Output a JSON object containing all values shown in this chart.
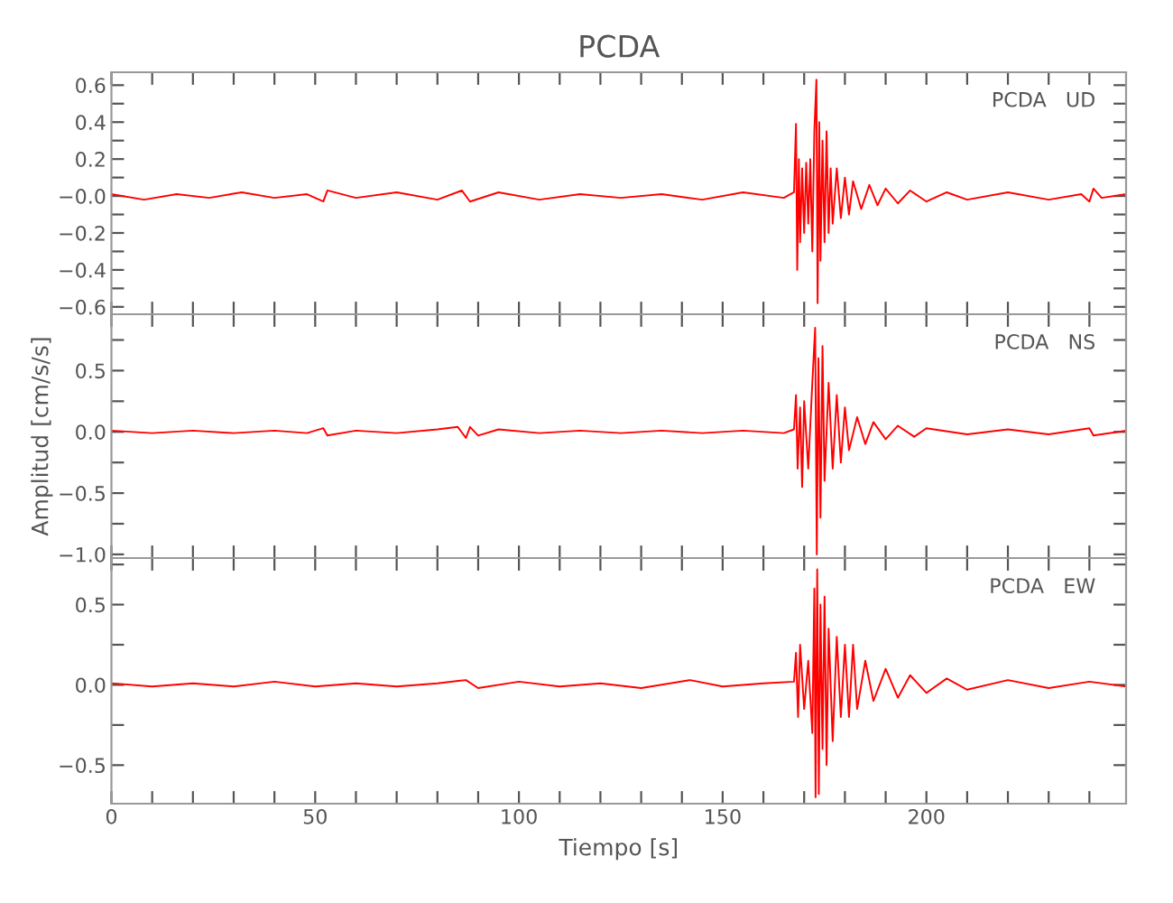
{
  "chart_data": [
    {
      "type": "line",
      "title": "PCDA",
      "annotations": [
        "PCDA   UD"
      ],
      "xlim": [
        0,
        249
      ],
      "ylim": [
        -0.64,
        0.67
      ],
      "tick_labels": "y",
      "xticks": [
        {
          "value": 0,
          "label": null
        },
        {
          "value": 10,
          "label": null
        },
        {
          "value": 20,
          "label": null
        },
        {
          "value": 30,
          "label": null
        },
        {
          "value": 40,
          "label": null
        },
        {
          "value": 50,
          "label": null
        },
        {
          "value": 60,
          "label": null
        },
        {
          "value": 70,
          "label": null
        },
        {
          "value": 80,
          "label": null
        },
        {
          "value": 90,
          "label": null
        },
        {
          "value": 100,
          "label": null
        },
        {
          "value": 110,
          "label": null
        },
        {
          "value": 120,
          "label": null
        },
        {
          "value": 130,
          "label": null
        },
        {
          "value": 140,
          "label": null
        },
        {
          "value": 150,
          "label": null
        },
        {
          "value": 160,
          "label": null
        },
        {
          "value": 170,
          "label": null
        },
        {
          "value": 180,
          "label": null
        },
        {
          "value": 190,
          "label": null
        },
        {
          "value": 200,
          "label": null
        },
        {
          "value": 210,
          "label": null
        },
        {
          "value": 220,
          "label": null
        },
        {
          "value": 230,
          "label": null
        },
        {
          "value": 240,
          "label": null
        }
      ],
      "yticks": [
        {
          "value": -0.6,
          "label": "−0.6"
        },
        {
          "value": -0.5,
          "label": null
        },
        {
          "value": -0.4,
          "label": "−0.4"
        },
        {
          "value": -0.3,
          "label": null
        },
        {
          "value": -0.2,
          "label": "−0.2"
        },
        {
          "value": -0.1,
          "label": null
        },
        {
          "value": 0,
          "label": "−0.0"
        },
        {
          "value": 0.1,
          "label": null
        },
        {
          "value": 0.2,
          "label": "0.2"
        },
        {
          "value": 0.3,
          "label": null
        },
        {
          "value": 0.4,
          "label": "0.4"
        },
        {
          "value": 0.5,
          "label": null
        },
        {
          "value": 0.6,
          "label": "0.6"
        }
      ],
      "series": [
        {
          "color": "#ff0000",
          "x": [
            0,
            8,
            16,
            24,
            32,
            40,
            48,
            52,
            53,
            60,
            70,
            80,
            86,
            88,
            95,
            105,
            115,
            125,
            135,
            145,
            155,
            165,
            167.5,
            168,
            168.3,
            168.7,
            169,
            169.5,
            170,
            170.5,
            171,
            171.5,
            172,
            172.5,
            173,
            173.3,
            173.7,
            174,
            174.5,
            175,
            175.5,
            176,
            176.5,
            177,
            178,
            179,
            180,
            181,
            182,
            184,
            186,
            188,
            190,
            193,
            196,
            200,
            205,
            210,
            220,
            230,
            238,
            240,
            241,
            243,
            249
          ],
          "values": [
            0.01,
            -0.02,
            0.01,
            -0.01,
            0.02,
            -0.01,
            0.01,
            -0.03,
            0.03,
            -0.01,
            0.02,
            -0.02,
            0.03,
            -0.03,
            0.02,
            -0.02,
            0.01,
            -0.01,
            0.01,
            -0.02,
            0.02,
            -0.01,
            0.02,
            0.39,
            -0.4,
            0.2,
            -0.25,
            0.15,
            -0.2,
            0.18,
            -0.15,
            0.2,
            -0.3,
            0.35,
            0.63,
            -0.58,
            0.4,
            -0.35,
            0.3,
            -0.25,
            0.35,
            -0.2,
            0.15,
            -0.15,
            0.15,
            -0.12,
            0.1,
            -0.1,
            0.08,
            -0.07,
            0.06,
            -0.05,
            0.04,
            -0.04,
            0.03,
            -0.03,
            0.02,
            -0.02,
            0.02,
            -0.02,
            0.01,
            -0.03,
            0.04,
            -0.01,
            0.01
          ]
        }
      ]
    },
    {
      "type": "line",
      "ylabel": "Amplitud [cm/s/s]",
      "annotations": [
        "PCDA   NS"
      ],
      "xlim": [
        0,
        249
      ],
      "ylim": [
        -1.03,
        0.96
      ],
      "tick_labels": "y",
      "xticks": [
        {
          "value": 0,
          "label": null
        },
        {
          "value": 10,
          "label": null
        },
        {
          "value": 20,
          "label": null
        },
        {
          "value": 30,
          "label": null
        },
        {
          "value": 40,
          "label": null
        },
        {
          "value": 50,
          "label": null
        },
        {
          "value": 60,
          "label": null
        },
        {
          "value": 70,
          "label": null
        },
        {
          "value": 80,
          "label": null
        },
        {
          "value": 90,
          "label": null
        },
        {
          "value": 100,
          "label": null
        },
        {
          "value": 110,
          "label": null
        },
        {
          "value": 120,
          "label": null
        },
        {
          "value": 130,
          "label": null
        },
        {
          "value": 140,
          "label": null
        },
        {
          "value": 150,
          "label": null
        },
        {
          "value": 160,
          "label": null
        },
        {
          "value": 170,
          "label": null
        },
        {
          "value": 180,
          "label": null
        },
        {
          "value": 190,
          "label": null
        },
        {
          "value": 200,
          "label": null
        },
        {
          "value": 210,
          "label": null
        },
        {
          "value": 220,
          "label": null
        },
        {
          "value": 230,
          "label": null
        },
        {
          "value": 240,
          "label": null
        }
      ],
      "yticks": [
        {
          "value": -1.0,
          "label": "−1.0"
        },
        {
          "value": -0.75,
          "label": null
        },
        {
          "value": -0.5,
          "label": "−0.5"
        },
        {
          "value": -0.25,
          "label": null
        },
        {
          "value": 0,
          "label": "0.0"
        },
        {
          "value": 0.25,
          "label": null
        },
        {
          "value": 0.5,
          "label": "0.5"
        },
        {
          "value": 0.75,
          "label": null
        }
      ],
      "series": [
        {
          "color": "#ff0000",
          "x": [
            0,
            10,
            20,
            30,
            40,
            48,
            52,
            53,
            60,
            70,
            80,
            85,
            87,
            88,
            90,
            95,
            105,
            115,
            125,
            135,
            145,
            155,
            165,
            167.5,
            168,
            168.4,
            169,
            169.5,
            170,
            171,
            172,
            172.7,
            173.1,
            173.5,
            174,
            174.5,
            175,
            176,
            177,
            178,
            179,
            180,
            181,
            183,
            185,
            187,
            190,
            193,
            197,
            200,
            210,
            220,
            230,
            240,
            241,
            249
          ],
          "values": [
            0.01,
            -0.01,
            0.01,
            -0.01,
            0.01,
            -0.01,
            0.03,
            -0.03,
            0.01,
            -0.01,
            0.02,
            0.04,
            -0.05,
            0.04,
            -0.03,
            0.02,
            -0.01,
            0.01,
            -0.01,
            0.01,
            -0.01,
            0.01,
            -0.01,
            0.02,
            0.3,
            -0.3,
            0.2,
            -0.45,
            0.25,
            -0.3,
            0.4,
            0.85,
            -1.0,
            0.6,
            -0.7,
            0.7,
            -0.4,
            0.4,
            -0.3,
            0.3,
            -0.25,
            0.2,
            -0.15,
            0.12,
            -0.1,
            0.08,
            -0.06,
            0.05,
            -0.04,
            0.03,
            -0.02,
            0.02,
            -0.02,
            0.03,
            -0.03,
            0.01
          ]
        }
      ]
    },
    {
      "type": "line",
      "xlabel": "Tiempo [s]",
      "annotations": [
        "PCDA   EW"
      ],
      "xlim": [
        0,
        249
      ],
      "ylim": [
        -0.74,
        0.79
      ],
      "xticks": [
        0,
        {
          "value": 10,
          "label": null
        },
        {
          "value": 20,
          "label": null
        },
        {
          "value": 30,
          "label": null
        },
        {
          "value": 40,
          "label": null
        },
        50,
        {
          "value": 60,
          "label": null
        },
        {
          "value": 70,
          "label": null
        },
        {
          "value": 80,
          "label": null
        },
        {
          "value": 90,
          "label": null
        },
        100,
        {
          "value": 110,
          "label": null
        },
        {
          "value": 120,
          "label": null
        },
        {
          "value": 130,
          "label": null
        },
        {
          "value": 140,
          "label": null
        },
        150,
        {
          "value": 160,
          "label": null
        },
        {
          "value": 170,
          "label": null
        },
        {
          "value": 180,
          "label": null
        },
        {
          "value": 190,
          "label": null
        },
        200,
        {
          "value": 210,
          "label": null
        },
        {
          "value": 220,
          "label": null
        },
        {
          "value": 230,
          "label": null
        },
        {
          "value": 240,
          "label": null
        }
      ],
      "yticks": [
        {
          "value": -0.5,
          "label": "−0.5"
        },
        {
          "value": -0.25,
          "label": null
        },
        {
          "value": 0,
          "label": "0.0"
        },
        {
          "value": 0.25,
          "label": null
        },
        {
          "value": 0.5,
          "label": "0.5"
        },
        {
          "value": 0.75,
          "label": null
        }
      ],
      "series": [
        {
          "color": "#ff0000",
          "x": [
            0,
            10,
            20,
            30,
            40,
            50,
            60,
            70,
            80,
            87,
            90,
            100,
            110,
            120,
            130,
            142,
            150,
            160,
            167.5,
            168,
            168.5,
            169,
            170,
            171,
            172,
            172.5,
            172.8,
            173.2,
            173.6,
            174,
            174.5,
            175,
            175.5,
            176,
            177,
            178,
            179,
            180,
            181,
            182,
            183,
            185,
            187,
            190,
            193,
            196,
            200,
            205,
            210,
            220,
            230,
            240,
            249
          ],
          "values": [
            0.01,
            -0.01,
            0.01,
            -0.01,
            0.02,
            -0.01,
            0.01,
            -0.01,
            0.01,
            0.03,
            -0.02,
            0.02,
            -0.01,
            0.01,
            -0.02,
            0.03,
            -0.01,
            0.01,
            0.02,
            0.2,
            -0.2,
            0.25,
            -0.15,
            0.15,
            -0.3,
            0.6,
            -0.7,
            0.72,
            -0.68,
            0.5,
            -0.4,
            0.55,
            -0.5,
            0.35,
            -0.35,
            0.3,
            -0.2,
            0.25,
            -0.2,
            0.25,
            -0.15,
            0.15,
            -0.1,
            0.1,
            -0.08,
            0.06,
            -0.05,
            0.04,
            -0.03,
            0.03,
            -0.02,
            0.02,
            -0.01
          ]
        }
      ]
    }
  ]
}
